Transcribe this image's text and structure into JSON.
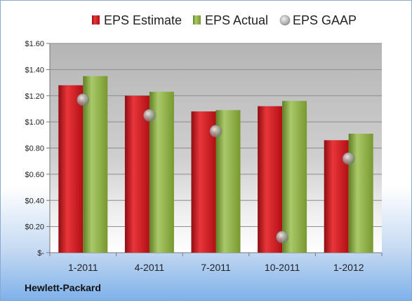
{
  "company": "Hewlett-Packard",
  "chart_data": {
    "type": "bar",
    "categories": [
      "1-2011",
      "4-2011",
      "7-2011",
      "10-2011",
      "1-2012"
    ],
    "series": [
      {
        "name": "EPS Estimate",
        "kind": "bar",
        "color": "#c8161d",
        "values": [
          1.28,
          1.2,
          1.08,
          1.12,
          0.86
        ]
      },
      {
        "name": "EPS Actual",
        "kind": "bar",
        "color": "#8db140",
        "values": [
          1.35,
          1.23,
          1.09,
          1.16,
          0.91
        ]
      },
      {
        "name": "EPS GAAP",
        "kind": "scatter",
        "color": "#9aa0a8",
        "values": [
          1.17,
          1.05,
          0.93,
          0.12,
          0.72
        ]
      }
    ],
    "ylim": [
      0,
      1.6
    ],
    "yticks": [
      0,
      0.2,
      0.4,
      0.6,
      0.8,
      1.0,
      1.2,
      1.4,
      1.6
    ],
    "ytick_labels": [
      "$-",
      "$0.20",
      "$0.40",
      "$0.60",
      "$0.80",
      "$1.00",
      "$1.20",
      "$1.40",
      "$1.60"
    ],
    "legend_position": "top",
    "grid": true
  }
}
